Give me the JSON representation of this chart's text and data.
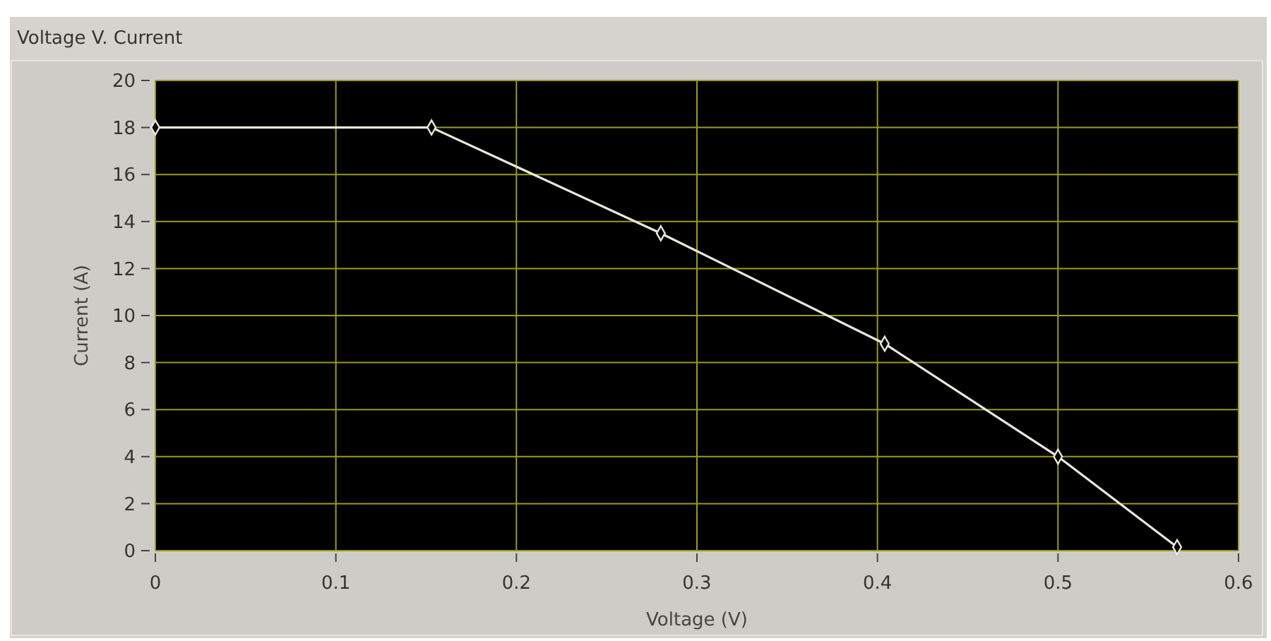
{
  "chart_data": {
    "type": "line",
    "title": "Voltage V. Current",
    "xlabel": "Voltage (V)",
    "ylabel": "Current (A)",
    "x": [
      0,
      0.153,
      0.28,
      0.404,
      0.5,
      0.566
    ],
    "series": [
      {
        "color": "#e8e8d8",
        "values": [
          18.0,
          18.0,
          13.5,
          8.8,
          4.0,
          0.15
        ]
      }
    ],
    "xlim": [
      0,
      0.6
    ],
    "xticks": [
      0,
      0.1,
      0.2,
      0.3,
      0.4,
      0.5,
      0.6
    ],
    "ylim": [
      0,
      20
    ],
    "yticks": [
      0,
      2,
      4,
      6,
      8,
      10,
      12,
      14,
      16,
      18,
      20
    ],
    "grid": true,
    "marker": "diamond",
    "line_style": "solid"
  }
}
